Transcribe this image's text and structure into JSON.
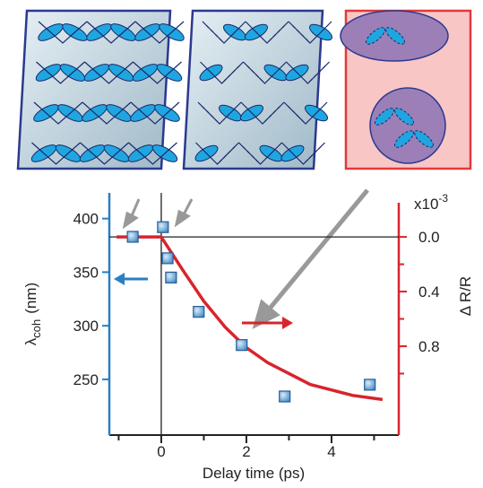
{
  "chart_data": {
    "type": "scatter",
    "xlabel": "Delay time (ps)",
    "ylabel": "λ",
    "ylabel_sub": "coh",
    "ylabel_unit": "(nm)",
    "y2label": "Δ R/R",
    "y2_scale_base": "x10",
    "y2_scale_exp": "-3",
    "xlim": [
      -1.22,
      5.58
    ],
    "xticks": [
      0,
      2,
      4
    ],
    "xminorticks": [
      -1,
      1,
      3,
      5
    ],
    "ylim": [
      198,
      424
    ],
    "yticks": [
      250,
      300,
      350,
      400
    ],
    "y2lim": [
      -0.25,
      1.45
    ],
    "y2_inverted": true,
    "y2ticks": [
      {
        "value": 0,
        "label": "0.0"
      },
      0.4,
      0.8
    ],
    "y2minorticks": [
      0.2,
      0.6,
      1.0
    ],
    "series": [
      {
        "type": "scatter",
        "color": "#5aa0d8",
        "x": [
          -0.67,
          0.04,
          0.15,
          0.23,
          0.88,
          1.89,
          2.9,
          4.9
        ],
        "values": [
          383,
          392,
          363,
          345,
          313,
          282,
          234,
          245
        ]
      },
      {
        "type": "line",
        "axis": "y2",
        "color": "#d8242c",
        "x": [
          -1.05,
          0,
          0.5,
          1,
          1.5,
          2,
          2.5,
          3,
          3.5,
          4,
          4.5,
          5.2
        ],
        "values": [
          0,
          0,
          0.24,
          0.47,
          0.66,
          0.81,
          0.92,
          1.0,
          1.08,
          1.12,
          1.16,
          1.19
        ]
      }
    ]
  }
}
